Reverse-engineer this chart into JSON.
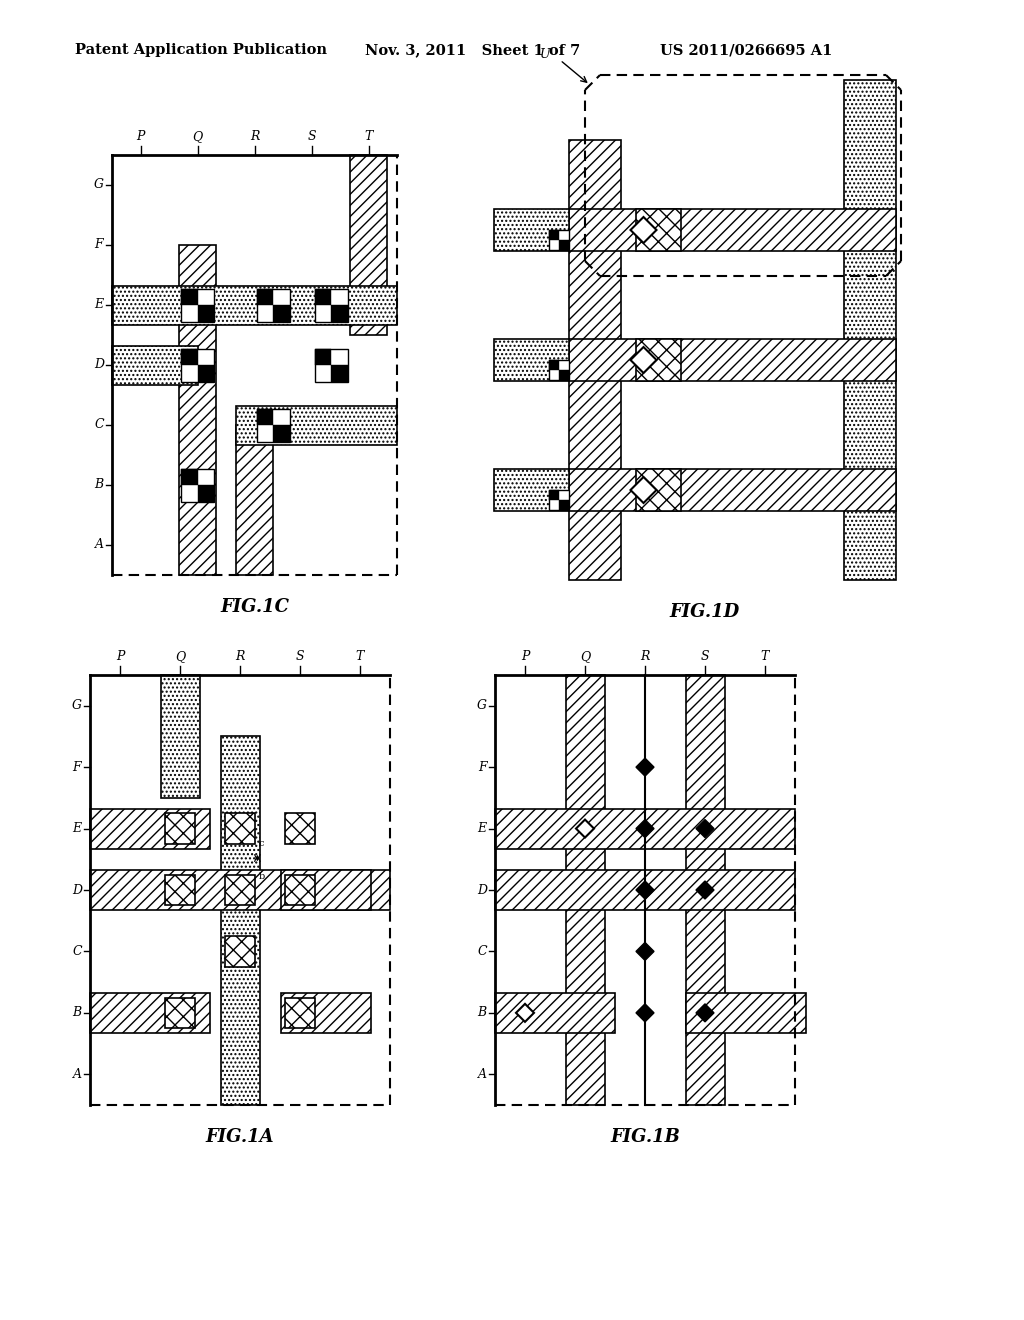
{
  "header_left": "Patent Application Publication",
  "header_mid": "Nov. 3, 2011   Sheet 1 of 7",
  "header_right": "US 2011/0266695 A1",
  "bg_color": "#ffffff"
}
